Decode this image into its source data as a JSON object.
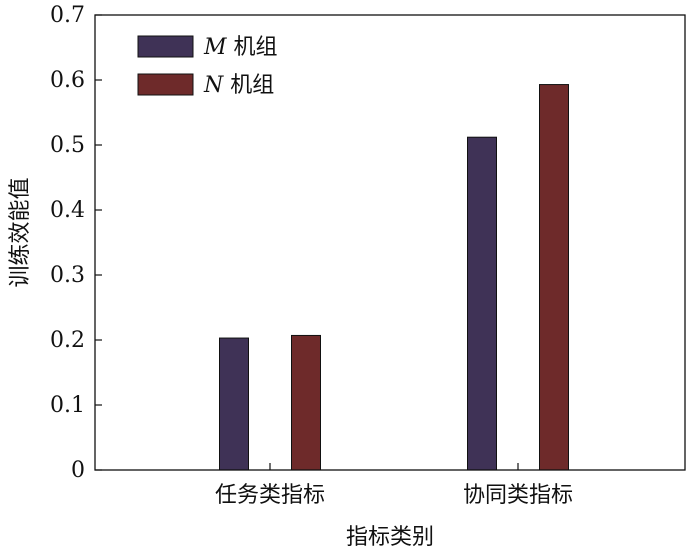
{
  "chart_data": {
    "type": "bar",
    "title": "",
    "xlabel": "指标类别",
    "ylabel": "训练效能值",
    "categories": [
      "任务类指标",
      "协同类指标"
    ],
    "ylim": [
      0,
      0.7
    ],
    "yticks": [
      "0",
      "0.1",
      "0.2",
      "0.3",
      "0.4",
      "0.5",
      "0.6",
      "0.7"
    ],
    "yticks_values": [
      0,
      0.1,
      0.2,
      0.3,
      0.4,
      0.5,
      0.6,
      0.7
    ],
    "grid": false,
    "legend_placement": "top-left",
    "series": [
      {
        "name": "M 机组",
        "name_var": "M",
        "name_rest": " 机组",
        "color": "#3f3256",
        "values": [
          0.203,
          0.512
        ]
      },
      {
        "name": "N 机组",
        "name_var": "N",
        "name_rest": " 机组",
        "color": "#6e2a2a",
        "values": [
          0.207,
          0.593
        ]
      }
    ]
  }
}
